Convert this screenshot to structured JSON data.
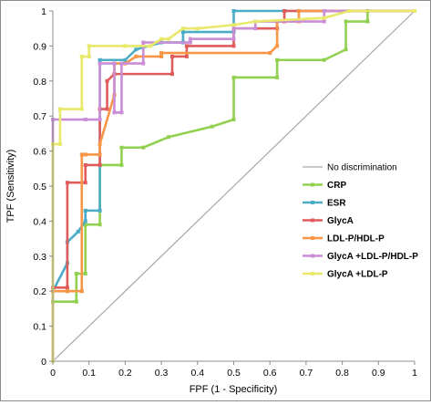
{
  "chart_data": {
    "type": "line",
    "title": "",
    "xlabel": "FPF (1 - Specificity)",
    "ylabel": "TPF (Sensitivity)",
    "xlim": [
      0,
      1
    ],
    "ylim": [
      0,
      1
    ],
    "x_ticks": [
      "0",
      "0.1",
      "0.2",
      "0.3",
      "0.4",
      "0.5",
      "0.6",
      "0.7",
      "0.8",
      "0.9",
      "1"
    ],
    "y_ticks": [
      "0",
      "0.1",
      "0.2",
      "0.3",
      "0.4",
      "0.5",
      "0.6",
      "0.7",
      "0.8",
      "0.9",
      "1"
    ],
    "grid": false,
    "legend_position": "right",
    "reference_line": {
      "name": "No discrimination",
      "color": "#a6a6a6",
      "points": [
        [
          0,
          0
        ],
        [
          1,
          1
        ]
      ]
    },
    "series": [
      {
        "name": "CRP",
        "color": "#92d050",
        "points": [
          [
            0,
            0
          ],
          [
            0,
            0.17
          ],
          [
            0.065,
            0.17
          ],
          [
            0.065,
            0.25
          ],
          [
            0.09,
            0.25
          ],
          [
            0.09,
            0.39
          ],
          [
            0.13,
            0.39
          ],
          [
            0.13,
            0.56
          ],
          [
            0.19,
            0.56
          ],
          [
            0.19,
            0.61
          ],
          [
            0.25,
            0.61
          ],
          [
            0.32,
            0.64
          ],
          [
            0.44,
            0.67
          ],
          [
            0.5,
            0.69
          ],
          [
            0.5,
            0.81
          ],
          [
            0.62,
            0.81
          ],
          [
            0.62,
            0.86
          ],
          [
            0.75,
            0.86
          ],
          [
            0.81,
            0.89
          ],
          [
            0.81,
            0.97
          ],
          [
            0.87,
            0.97
          ],
          [
            0.87,
            1
          ],
          [
            1,
            1
          ]
        ]
      },
      {
        "name": "ESR",
        "color": "#4bacc6",
        "points": [
          [
            0,
            0
          ],
          [
            0,
            0.2
          ],
          [
            0.04,
            0.28
          ],
          [
            0.04,
            0.34
          ],
          [
            0.07,
            0.37
          ],
          [
            0.09,
            0.4
          ],
          [
            0.09,
            0.43
          ],
          [
            0.13,
            0.43
          ],
          [
            0.13,
            0.86
          ],
          [
            0.2,
            0.86
          ],
          [
            0.23,
            0.89
          ],
          [
            0.3,
            0.91
          ],
          [
            0.36,
            0.91
          ],
          [
            0.36,
            0.94
          ],
          [
            0.5,
            0.94
          ],
          [
            0.5,
            1
          ],
          [
            1,
            1
          ]
        ]
      },
      {
        "name": "GlycA",
        "color": "#e05c5c",
        "points": [
          [
            0,
            0
          ],
          [
            0,
            0.21
          ],
          [
            0.04,
            0.21
          ],
          [
            0.04,
            0.51
          ],
          [
            0.09,
            0.51
          ],
          [
            0.09,
            0.56
          ],
          [
            0.13,
            0.56
          ],
          [
            0.13,
            0.72
          ],
          [
            0.15,
            0.72
          ],
          [
            0.15,
            0.8
          ],
          [
            0.17,
            0.82
          ],
          [
            0.33,
            0.82
          ],
          [
            0.33,
            0.87
          ],
          [
            0.37,
            0.87
          ],
          [
            0.37,
            0.9
          ],
          [
            0.5,
            0.9
          ],
          [
            0.5,
            0.95
          ],
          [
            0.62,
            0.95
          ],
          [
            0.62,
            0.97
          ],
          [
            0.64,
            0.97
          ],
          [
            0.64,
            1
          ],
          [
            1,
            1
          ]
        ]
      },
      {
        "name": "LDL-P/HDL-P",
        "color": "#f79646",
        "points": [
          [
            0,
            0
          ],
          [
            0,
            0.2
          ],
          [
            0.04,
            0.2
          ],
          [
            0.04,
            0.2
          ],
          [
            0.08,
            0.2
          ],
          [
            0.08,
            0.59
          ],
          [
            0.09,
            0.59
          ],
          [
            0.09,
            0.59
          ],
          [
            0.13,
            0.59
          ],
          [
            0.13,
            0.62
          ],
          [
            0.17,
            0.76
          ],
          [
            0.17,
            0.85
          ],
          [
            0.2,
            0.85
          ],
          [
            0.23,
            0.87
          ],
          [
            0.3,
            0.87
          ],
          [
            0.3,
            0.88
          ],
          [
            0.6,
            0.88
          ],
          [
            0.62,
            0.9
          ],
          [
            0.62,
            0.97
          ],
          [
            0.68,
            0.97
          ],
          [
            0.68,
            1
          ],
          [
            1,
            1
          ]
        ]
      },
      {
        "name": "GlycA +LDL-P/HDL-P",
        "color": "#c98ed6",
        "points": [
          [
            0,
            0
          ],
          [
            0,
            0.69
          ],
          [
            0.09,
            0.69
          ],
          [
            0.09,
            0.69
          ],
          [
            0.13,
            0.69
          ],
          [
            0.13,
            0.85
          ],
          [
            0.17,
            0.85
          ],
          [
            0.17,
            0.71
          ],
          [
            0.19,
            0.71
          ],
          [
            0.19,
            0.85
          ],
          [
            0.25,
            0.85
          ],
          [
            0.25,
            0.91
          ],
          [
            0.38,
            0.91
          ],
          [
            0.38,
            0.92
          ],
          [
            0.5,
            0.92
          ],
          [
            0.5,
            0.95
          ],
          [
            0.56,
            0.95
          ],
          [
            0.56,
            0.97
          ],
          [
            0.75,
            0.97
          ],
          [
            0.75,
            1
          ],
          [
            1,
            1
          ]
        ]
      },
      {
        "name": "GlycA +LDL-P",
        "color": "#e8e86a",
        "points": [
          [
            0,
            0
          ],
          [
            0,
            0.62
          ],
          [
            0.02,
            0.62
          ],
          [
            0.02,
            0.72
          ],
          [
            0.08,
            0.72
          ],
          [
            0.08,
            0.87
          ],
          [
            0.1,
            0.87
          ],
          [
            0.1,
            0.9
          ],
          [
            0.2,
            0.9
          ],
          [
            0.2,
            0.9
          ],
          [
            0.27,
            0.9
          ],
          [
            0.3,
            0.92
          ],
          [
            0.32,
            0.92
          ],
          [
            0.36,
            0.95
          ],
          [
            0.4,
            0.95
          ],
          [
            0.5,
            0.96
          ],
          [
            0.56,
            0.97
          ],
          [
            0.75,
            0.98
          ],
          [
            0.82,
            1
          ],
          [
            1,
            1
          ]
        ]
      }
    ]
  }
}
